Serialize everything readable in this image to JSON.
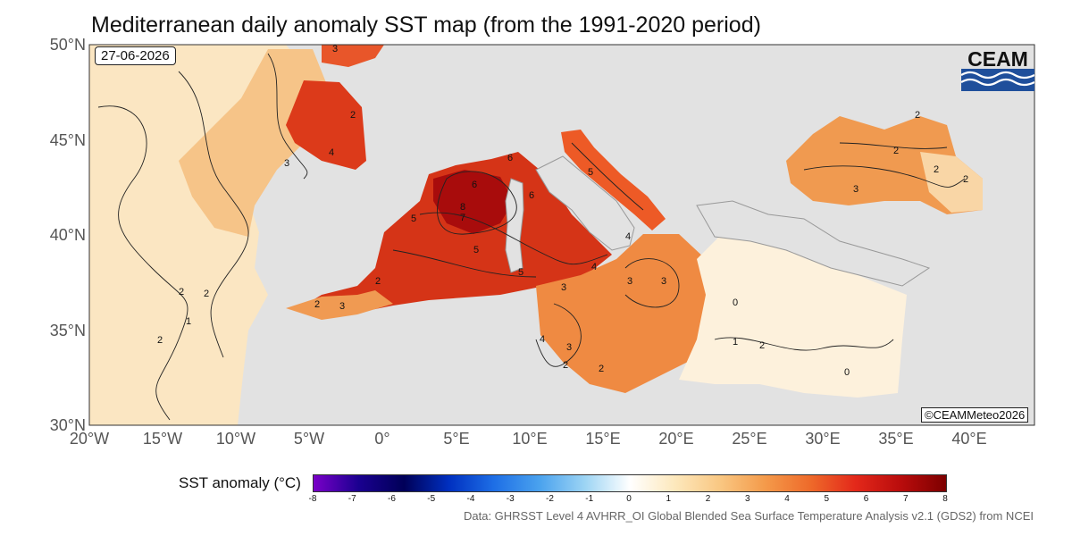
{
  "title": "Mediterranean daily anomaly SST map (from the 1991-2020 period)",
  "date": "27-06-2026",
  "copyright": "©CEAMMeteo2026",
  "logo_text": "CEAM",
  "source": "Data: GHRSST Level 4 AVHRR_OI Global Blended Sea Surface Temperature Analysis v2.1 (GDS2) from NCEI",
  "axes": {
    "lat_labels": [
      "50°N",
      "45°N",
      "40°N",
      "35°N",
      "30°N"
    ],
    "lon_labels": [
      "20°W",
      "15°W",
      "10°W",
      "5°W",
      "0°",
      "5°E",
      "10°E",
      "15°E",
      "20°E",
      "25°E",
      "30°E",
      "35°E",
      "40°E"
    ]
  },
  "colorbar": {
    "title": "SST anomaly (°C)",
    "ticks": [
      "-8",
      "-7",
      "-6",
      "-5",
      "-4",
      "-3",
      "-2",
      "-1",
      "0",
      "1",
      "2",
      "3",
      "4",
      "5",
      "6",
      "7",
      "8"
    ],
    "range": [
      -8,
      8
    ],
    "colors": [
      "#7a00c8",
      "#1a0090",
      "#000058",
      "#0030c0",
      "#1e6fe6",
      "#4aa2ee",
      "#9cd4f4",
      "#ffffff",
      "#fde8bc",
      "#f9c782",
      "#f49a4a",
      "#ee6a2a",
      "#e3281a",
      "#b90c0c",
      "#7d0000"
    ]
  },
  "contour_labels": [
    "3",
    "4",
    "2",
    "5",
    "6",
    "8",
    "7",
    "1",
    "0"
  ],
  "land_color": "#e2e2e2",
  "ocean_colors": {
    "atlantic": "#fbe3b8",
    "western_med": "#d83418",
    "eastern_med": "#fdf3e0",
    "black_sea": "#f19a50"
  }
}
